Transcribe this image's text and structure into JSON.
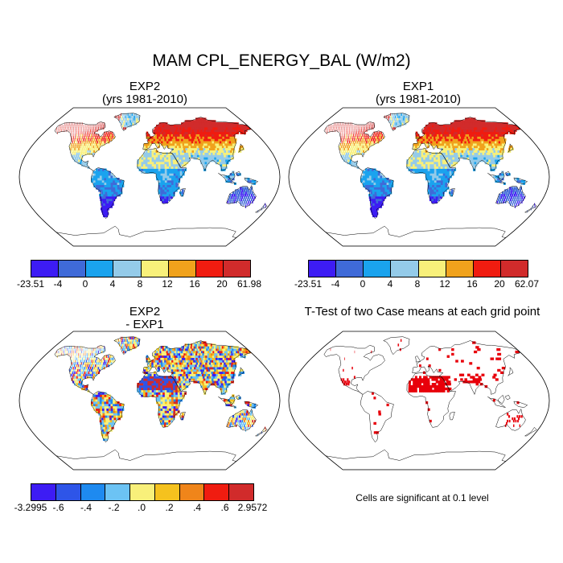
{
  "title": "MAM CPL_ENERGY_BAL (W/m2)",
  "panels": {
    "exp2": {
      "name": "EXP2",
      "years": "(yrs 1981-2010)"
    },
    "exp1": {
      "name": "EXP1",
      "years": "(yrs 1981-2010)"
    },
    "diff": {
      "name": "EXP2",
      "minus": "- EXP1"
    },
    "ttest": {
      "title": "T-Test of two Case means at each grid point",
      "note": "Cells are significant at 0.1 level"
    }
  },
  "colorbars": {
    "exp2": {
      "labels": [
        "-23.51",
        "-4",
        "0",
        "4",
        "8",
        "12",
        "16",
        "20",
        "61.98"
      ],
      "colors": [
        "#3d1cf4",
        "#3f6ad8",
        "#1aa3ee",
        "#94cbe9",
        "#f8f07a",
        "#f0a21c",
        "#f01c10",
        "#d12b2b"
      ]
    },
    "exp1": {
      "labels": [
        "-23.51",
        "-4",
        "0",
        "4",
        "8",
        "12",
        "16",
        "20",
        "62.07"
      ],
      "colors": [
        "#3d1cf4",
        "#3f6ad8",
        "#1aa3ee",
        "#94cbe9",
        "#f8f07a",
        "#f0a21c",
        "#f01c10",
        "#d12b2b"
      ]
    },
    "diff": {
      "labels": [
        "-3.2995",
        "-.6",
        "-.4",
        "-.2",
        ".0",
        ".2",
        ".4",
        ".6",
        "2.9572"
      ],
      "colors": [
        "#3d1cf4",
        "#2e55e8",
        "#1e8af0",
        "#6cc3f4",
        "#f8f07a",
        "#f5c21e",
        "#f0851a",
        "#f01c10",
        "#d12b2b"
      ]
    }
  },
  "map_colors": {
    "ocean": "#ffffff",
    "coast": "#000000",
    "significant": "#e8000b"
  }
}
